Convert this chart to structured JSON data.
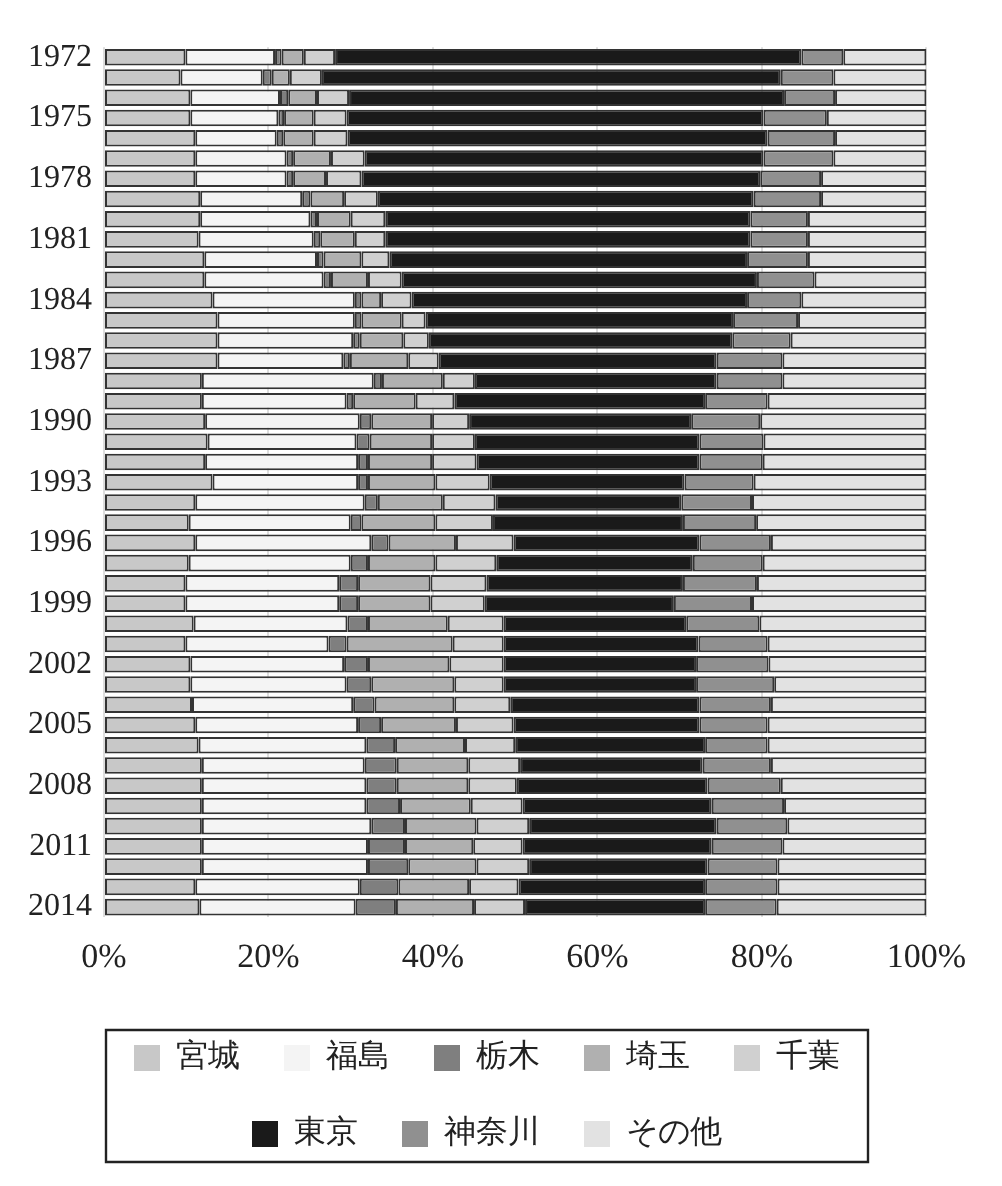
{
  "chart_data": {
    "type": "bar",
    "orientation": "horizontal",
    "stacked": true,
    "categories": [
      "1972",
      null,
      null,
      "1975",
      null,
      null,
      "1978",
      null,
      null,
      "1981",
      null,
      null,
      "1984",
      null,
      null,
      "1987",
      null,
      null,
      "1990",
      null,
      null,
      "1993",
      null,
      null,
      "1996",
      null,
      null,
      "1999",
      null,
      null,
      "2002",
      null,
      null,
      "2005",
      null,
      null,
      "2008",
      null,
      null,
      "2011",
      null,
      null,
      "2014"
    ],
    "series": [
      {
        "name": "宮城",
        "color": "#c8c8c8",
        "values": [
          9.9,
          9.3,
          10.5,
          10.5,
          11.1,
          11.1,
          11.1,
          11.7,
          11.7,
          11.5,
          12.2,
          12.2,
          13.2,
          13.8,
          13.8,
          13.8,
          11.9,
          11.9,
          12.3,
          12.6,
          12.3,
          13.2,
          11.1,
          10.3,
          11.1,
          10.3,
          9.9,
          9.9,
          10.9,
          9.9,
          10.5,
          10.5,
          10.7,
          11.1,
          11.5,
          11.9,
          11.9,
          11.9,
          11.9,
          11.9,
          11.9,
          11.1,
          11.6
        ]
      },
      {
        "name": "福島",
        "color": "#f4f4f4",
        "values": [
          10.9,
          10.0,
          10.9,
          10.7,
          9.9,
          11.1,
          11.1,
          12.4,
          13.4,
          14.0,
          13.7,
          14.5,
          17.3,
          16.7,
          16.5,
          15.3,
          20.9,
          17.6,
          18.8,
          18.1,
          18.6,
          17.7,
          20.6,
          19.7,
          21.4,
          19.7,
          18.7,
          18.7,
          18.7,
          17.4,
          18.7,
          19.0,
          19.6,
          19.8,
          20.4,
          19.8,
          20.0,
          20.0,
          20.6,
          20.2,
          20.2,
          20.0,
          19.0
        ]
      },
      {
        "name": "栃木",
        "color": "#7f7f7f",
        "values": [
          0.8,
          1.1,
          1.0,
          0.7,
          0.8,
          0.8,
          0.8,
          1.0,
          0.8,
          0.8,
          0.8,
          0.9,
          0.8,
          0.8,
          0.8,
          0.8,
          1.0,
          0.8,
          1.4,
          1.6,
          1.2,
          1.2,
          1.6,
          1.3,
          2.1,
          2.1,
          2.3,
          2.3,
          2.5,
          2.2,
          2.9,
          3.0,
          2.6,
          2.8,
          3.5,
          3.9,
          3.7,
          4.1,
          4.1,
          4.5,
          4.9,
          4.7,
          4.9
        ]
      },
      {
        "name": "埼玉",
        "color": "#b0b0b0",
        "values": [
          2.7,
          2.2,
          3.5,
          3.6,
          3.7,
          4.6,
          4.0,
          4.1,
          4.1,
          4.2,
          4.6,
          4.5,
          2.4,
          4.9,
          5.3,
          7.1,
          7.4,
          7.6,
          7.4,
          7.6,
          7.8,
          8.2,
          7.9,
          9.0,
          8.2,
          8.2,
          8.8,
          8.8,
          9.7,
          12.9,
          9.9,
          10.1,
          9.7,
          9.1,
          8.5,
          8.7,
          8.7,
          8.6,
          8.7,
          8.3,
          8.3,
          8.6,
          9.5
        ]
      },
      {
        "name": "千葉",
        "color": "#d0d0d0",
        "values": [
          3.8,
          3.9,
          3.9,
          4.0,
          4.1,
          4.1,
          4.3,
          4.1,
          4.2,
          3.7,
          3.4,
          4.1,
          3.7,
          2.9,
          3.1,
          3.7,
          3.9,
          4.7,
          4.5,
          5.2,
          5.4,
          6.6,
          6.4,
          7.0,
          7.0,
          7.4,
          6.8,
          6.6,
          6.8,
          6.2,
          6.6,
          6.0,
          6.8,
          7.0,
          6.1,
          6.3,
          5.9,
          6.3,
          6.4,
          6.0,
          6.4,
          6.0,
          6.2
        ]
      },
      {
        "name": "東京",
        "color": "#1a1a1a",
        "values": [
          56.7,
          55.8,
          52.9,
          50.7,
          51.1,
          48.5,
          48.5,
          45.7,
          44.4,
          44.4,
          43.5,
          43.2,
          40.8,
          37.4,
          36.9,
          33.8,
          29.4,
          30.5,
          27.0,
          27.3,
          27.1,
          23.7,
          22.6,
          23.1,
          22.6,
          23.9,
          23.9,
          23.0,
          22.2,
          23.7,
          23.4,
          23.4,
          23.0,
          22.6,
          23.1,
          22.2,
          23.2,
          23.0,
          22.8,
          23.0,
          21.7,
          22.7,
          21.9
        ]
      },
      {
        "name": "神奈川",
        "color": "#909090",
        "values": [
          5.1,
          6.4,
          6.2,
          7.7,
          8.2,
          8.5,
          7.4,
          8.2,
          7.0,
          7.0,
          7.4,
          7.0,
          6.6,
          7.9,
          7.1,
          8.0,
          8.0,
          7.6,
          8.4,
          7.8,
          7.7,
          8.4,
          8.6,
          8.9,
          8.7,
          8.5,
          9.0,
          9.5,
          8.9,
          8.4,
          8.8,
          9.5,
          8.7,
          8.3,
          7.6,
          8.3,
          8.9,
          8.8,
          8.6,
          8.6,
          8.5,
          8.8,
          8.7
        ]
      },
      {
        "name": "その他",
        "color": "#e2e2e2",
        "values": [
          10.1,
          11.3,
          11.1,
          12.1,
          11.1,
          11.3,
          12.8,
          12.8,
          14.4,
          14.4,
          14.4,
          13.6,
          15.2,
          15.6,
          16.5,
          17.5,
          17.5,
          19.3,
          20.2,
          19.8,
          19.9,
          21.0,
          21.2,
          20.7,
          18.9,
          19.9,
          20.6,
          21.2,
          20.3,
          19.3,
          19.2,
          18.5,
          18.9,
          19.3,
          19.3,
          18.9,
          17.7,
          17.3,
          16.9,
          17.5,
          18.1,
          18.1,
          18.2
        ]
      }
    ],
    "xlim": [
      0,
      100
    ],
    "xticks": [
      {
        "value": 0,
        "label": "0%"
      },
      {
        "value": 20,
        "label": "20%"
      },
      {
        "value": 40,
        "label": "40%"
      },
      {
        "value": 60,
        "label": "60%"
      },
      {
        "value": 80,
        "label": "80%"
      },
      {
        "value": 100,
        "label": "100%"
      }
    ],
    "grid": "x",
    "legend": "bottom"
  }
}
